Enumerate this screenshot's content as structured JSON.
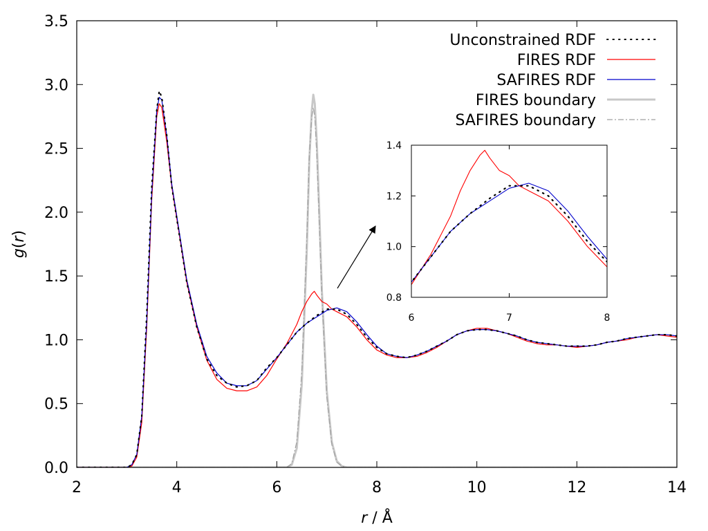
{
  "chart_data": {
    "type": "line",
    "xlabel_var": "r",
    "xlabel_unit": " / Å",
    "ylabel_var": "g",
    "ylabel_open": "(",
    "ylabel_arg": "r",
    "ylabel_close": ")",
    "xlim": [
      2,
      14
    ],
    "ylim": [
      0,
      3.5
    ],
    "xticks": [
      2,
      4,
      6,
      8,
      10,
      12,
      14
    ],
    "yticks": [
      0.0,
      0.5,
      1.0,
      1.5,
      2.0,
      2.5,
      3.0,
      3.5
    ],
    "xtick_labels": [
      "2",
      "4",
      "6",
      "8",
      "10",
      "12",
      "14"
    ],
    "ytick_labels": [
      "0.0",
      "0.5",
      "1.0",
      "1.5",
      "2.0",
      "2.5",
      "3.0",
      "3.5"
    ],
    "legend_position": "top-right",
    "series": [
      {
        "name": "Unconstrained RDF",
        "color": "#000000",
        "style": "dotted",
        "points": [
          [
            2.0,
            0
          ],
          [
            2.5,
            0
          ],
          [
            3.0,
            0
          ],
          [
            3.1,
            0.02
          ],
          [
            3.2,
            0.1
          ],
          [
            3.3,
            0.4
          ],
          [
            3.4,
            1.2
          ],
          [
            3.5,
            2.2
          ],
          [
            3.6,
            2.8
          ],
          [
            3.65,
            2.95
          ],
          [
            3.7,
            2.9
          ],
          [
            3.8,
            2.6
          ],
          [
            3.9,
            2.2
          ],
          [
            4.0,
            1.95
          ],
          [
            4.2,
            1.45
          ],
          [
            4.4,
            1.1
          ],
          [
            4.6,
            0.85
          ],
          [
            4.8,
            0.72
          ],
          [
            5.0,
            0.66
          ],
          [
            5.2,
            0.63
          ],
          [
            5.4,
            0.64
          ],
          [
            5.6,
            0.68
          ],
          [
            5.8,
            0.78
          ],
          [
            6.0,
            0.86
          ],
          [
            6.2,
            0.96
          ],
          [
            6.4,
            1.06
          ],
          [
            6.6,
            1.13
          ],
          [
            6.8,
            1.19
          ],
          [
            7.0,
            1.24
          ],
          [
            7.2,
            1.24
          ],
          [
            7.4,
            1.2
          ],
          [
            7.6,
            1.12
          ],
          [
            7.8,
            1.02
          ],
          [
            8.0,
            0.94
          ],
          [
            8.2,
            0.89
          ],
          [
            8.4,
            0.87
          ],
          [
            8.6,
            0.86
          ],
          [
            8.8,
            0.88
          ],
          [
            9.0,
            0.91
          ],
          [
            9.2,
            0.95
          ],
          [
            9.4,
            0.99
          ],
          [
            9.6,
            1.04
          ],
          [
            9.8,
            1.07
          ],
          [
            10.0,
            1.08
          ],
          [
            10.2,
            1.08
          ],
          [
            10.4,
            1.07
          ],
          [
            10.6,
            1.05
          ],
          [
            10.8,
            1.03
          ],
          [
            11.0,
            1.0
          ],
          [
            11.2,
            0.98
          ],
          [
            11.4,
            0.97
          ],
          [
            11.6,
            0.96
          ],
          [
            11.8,
            0.95
          ],
          [
            12.0,
            0.95
          ],
          [
            12.2,
            0.95
          ],
          [
            12.4,
            0.96
          ],
          [
            12.6,
            0.98
          ],
          [
            12.8,
            0.99
          ],
          [
            13.0,
            1.01
          ],
          [
            13.2,
            1.02
          ],
          [
            13.4,
            1.03
          ],
          [
            13.6,
            1.04
          ],
          [
            13.8,
            1.04
          ],
          [
            14.0,
            1.03
          ]
        ]
      },
      {
        "name": "FIRES RDF",
        "color": "#ff0000",
        "style": "solid",
        "points": [
          [
            2.0,
            0
          ],
          [
            2.5,
            0
          ],
          [
            3.0,
            0
          ],
          [
            3.1,
            0.01
          ],
          [
            3.2,
            0.08
          ],
          [
            3.3,
            0.35
          ],
          [
            3.4,
            1.1
          ],
          [
            3.5,
            2.1
          ],
          [
            3.6,
            2.75
          ],
          [
            3.65,
            2.85
          ],
          [
            3.7,
            2.82
          ],
          [
            3.8,
            2.55
          ],
          [
            3.9,
            2.2
          ],
          [
            4.0,
            1.95
          ],
          [
            4.2,
            1.45
          ],
          [
            4.4,
            1.1
          ],
          [
            4.6,
            0.84
          ],
          [
            4.8,
            0.69
          ],
          [
            5.0,
            0.62
          ],
          [
            5.2,
            0.6
          ],
          [
            5.4,
            0.6
          ],
          [
            5.6,
            0.63
          ],
          [
            5.8,
            0.72
          ],
          [
            6.0,
            0.85
          ],
          [
            6.2,
            0.97
          ],
          [
            6.4,
            1.12
          ],
          [
            6.5,
            1.22
          ],
          [
            6.6,
            1.3
          ],
          [
            6.7,
            1.36
          ],
          [
            6.75,
            1.38
          ],
          [
            6.8,
            1.35
          ],
          [
            6.9,
            1.3
          ],
          [
            7.0,
            1.28
          ],
          [
            7.1,
            1.24
          ],
          [
            7.2,
            1.22
          ],
          [
            7.4,
            1.18
          ],
          [
            7.6,
            1.1
          ],
          [
            7.8,
            1.0
          ],
          [
            8.0,
            0.92
          ],
          [
            8.2,
            0.88
          ],
          [
            8.4,
            0.86
          ],
          [
            8.6,
            0.86
          ],
          [
            8.8,
            0.87
          ],
          [
            9.0,
            0.9
          ],
          [
            9.2,
            0.94
          ],
          [
            9.4,
            0.99
          ],
          [
            9.6,
            1.04
          ],
          [
            9.8,
            1.07
          ],
          [
            10.0,
            1.09
          ],
          [
            10.2,
            1.09
          ],
          [
            10.4,
            1.07
          ],
          [
            10.6,
            1.05
          ],
          [
            10.8,
            1.02
          ],
          [
            11.0,
            0.99
          ],
          [
            11.2,
            0.97
          ],
          [
            11.4,
            0.96
          ],
          [
            11.6,
            0.96
          ],
          [
            11.8,
            0.95
          ],
          [
            12.0,
            0.94
          ],
          [
            12.2,
            0.95
          ],
          [
            12.4,
            0.96
          ],
          [
            12.6,
            0.98
          ],
          [
            12.8,
            0.99
          ],
          [
            13.0,
            1.0
          ],
          [
            13.2,
            1.02
          ],
          [
            13.4,
            1.03
          ],
          [
            13.6,
            1.04
          ],
          [
            13.8,
            1.03
          ],
          [
            14.0,
            1.02
          ]
        ]
      },
      {
        "name": "SAFIRES RDF",
        "color": "#0000cc",
        "style": "solid",
        "points": [
          [
            2.0,
            0
          ],
          [
            2.5,
            0
          ],
          [
            3.0,
            0
          ],
          [
            3.1,
            0.02
          ],
          [
            3.2,
            0.1
          ],
          [
            3.3,
            0.4
          ],
          [
            3.4,
            1.15
          ],
          [
            3.5,
            2.15
          ],
          [
            3.6,
            2.8
          ],
          [
            3.65,
            2.9
          ],
          [
            3.7,
            2.88
          ],
          [
            3.8,
            2.6
          ],
          [
            3.9,
            2.22
          ],
          [
            4.0,
            1.97
          ],
          [
            4.2,
            1.47
          ],
          [
            4.4,
            1.12
          ],
          [
            4.6,
            0.87
          ],
          [
            4.8,
            0.74
          ],
          [
            5.0,
            0.66
          ],
          [
            5.2,
            0.64
          ],
          [
            5.4,
            0.64
          ],
          [
            5.6,
            0.68
          ],
          [
            5.8,
            0.77
          ],
          [
            6.0,
            0.86
          ],
          [
            6.2,
            0.96
          ],
          [
            6.4,
            1.06
          ],
          [
            6.6,
            1.13
          ],
          [
            6.8,
            1.18
          ],
          [
            7.0,
            1.23
          ],
          [
            7.2,
            1.25
          ],
          [
            7.4,
            1.22
          ],
          [
            7.6,
            1.14
          ],
          [
            7.8,
            1.04
          ],
          [
            8.0,
            0.95
          ],
          [
            8.2,
            0.89
          ],
          [
            8.4,
            0.87
          ],
          [
            8.6,
            0.86
          ],
          [
            8.8,
            0.88
          ],
          [
            9.0,
            0.91
          ],
          [
            9.2,
            0.95
          ],
          [
            9.4,
            0.99
          ],
          [
            9.6,
            1.04
          ],
          [
            9.8,
            1.07
          ],
          [
            10.0,
            1.08
          ],
          [
            10.2,
            1.08
          ],
          [
            10.4,
            1.07
          ],
          [
            10.6,
            1.05
          ],
          [
            10.8,
            1.03
          ],
          [
            11.0,
            1.0
          ],
          [
            11.2,
            0.98
          ],
          [
            11.4,
            0.97
          ],
          [
            11.6,
            0.96
          ],
          [
            11.8,
            0.95
          ],
          [
            12.0,
            0.95
          ],
          [
            12.2,
            0.95
          ],
          [
            12.4,
            0.96
          ],
          [
            12.6,
            0.98
          ],
          [
            12.8,
            0.99
          ],
          [
            13.0,
            1.01
          ],
          [
            13.2,
            1.02
          ],
          [
            13.4,
            1.03
          ],
          [
            13.6,
            1.04
          ],
          [
            13.8,
            1.04
          ],
          [
            14.0,
            1.03
          ]
        ]
      },
      {
        "name": "FIRES boundary",
        "color": "#c8c8c8",
        "style": "solid-thick",
        "points": [
          [
            2.0,
            0
          ],
          [
            6.2,
            0
          ],
          [
            6.3,
            0.02
          ],
          [
            6.4,
            0.15
          ],
          [
            6.5,
            0.65
          ],
          [
            6.6,
            1.7
          ],
          [
            6.65,
            2.4
          ],
          [
            6.7,
            2.8
          ],
          [
            6.73,
            2.92
          ],
          [
            6.76,
            2.85
          ],
          [
            6.8,
            2.55
          ],
          [
            6.85,
            2.0
          ],
          [
            6.9,
            1.4
          ],
          [
            7.0,
            0.6
          ],
          [
            7.1,
            0.2
          ],
          [
            7.2,
            0.05
          ],
          [
            7.3,
            0.01
          ],
          [
            7.4,
            0
          ],
          [
            14.0,
            0
          ]
        ]
      },
      {
        "name": "SAFIRES boundary",
        "color": "#a0a0a0",
        "style": "dashdot",
        "points": [
          [
            2.0,
            0
          ],
          [
            6.2,
            0
          ],
          [
            6.3,
            0.03
          ],
          [
            6.4,
            0.2
          ],
          [
            6.5,
            0.75
          ],
          [
            6.6,
            1.8
          ],
          [
            6.65,
            2.45
          ],
          [
            6.7,
            2.75
          ],
          [
            6.73,
            2.82
          ],
          [
            6.76,
            2.75
          ],
          [
            6.8,
            2.45
          ],
          [
            6.85,
            1.9
          ],
          [
            6.9,
            1.35
          ],
          [
            7.0,
            0.55
          ],
          [
            7.1,
            0.18
          ],
          [
            7.2,
            0.04
          ],
          [
            7.3,
            0.01
          ],
          [
            7.4,
            0
          ],
          [
            14.0,
            0
          ]
        ]
      }
    ],
    "inset": {
      "xlim": [
        6,
        8
      ],
      "ylim": [
        0.8,
        1.4
      ],
      "xticks": [
        6,
        7,
        8
      ],
      "yticks": [
        0.8,
        1.0,
        1.2,
        1.4
      ],
      "xtick_labels": [
        "6",
        "7",
        "8"
      ],
      "ytick_labels": [
        "0.8",
        "1.0",
        "1.2",
        "1.4"
      ]
    }
  }
}
